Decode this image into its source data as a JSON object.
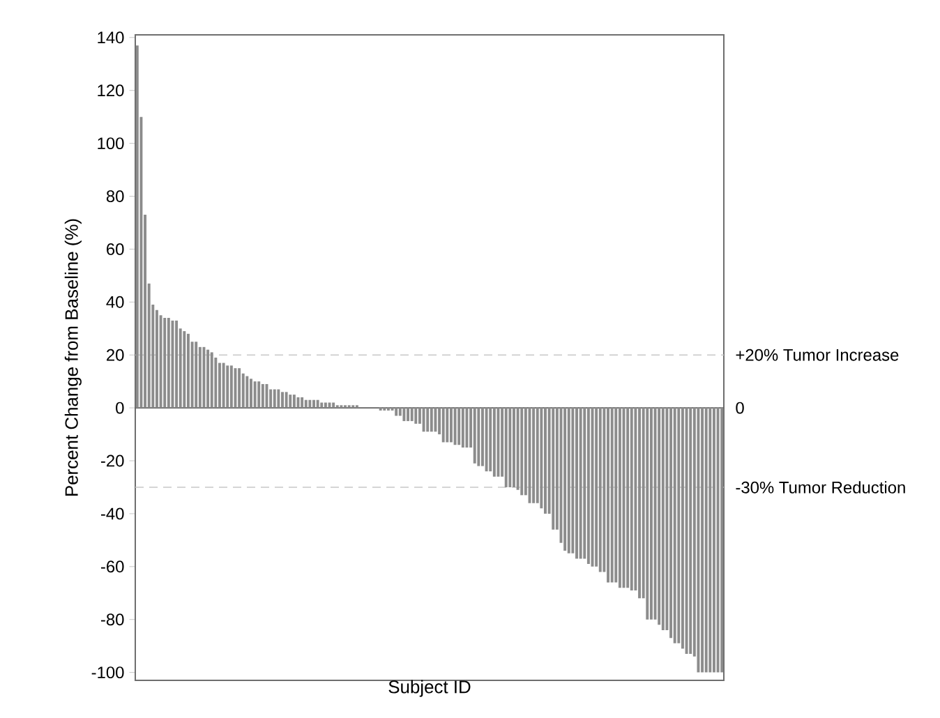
{
  "chart_data": {
    "type": "bar",
    "xlabel": "Subject ID",
    "ylabel": "Percent Change from Baseline (%)",
    "categories": [
      null,
      null,
      null,
      null,
      null,
      null,
      null,
      null,
      null,
      null,
      null,
      null,
      null,
      null,
      null,
      null,
      null,
      null,
      null,
      null,
      null,
      null,
      null,
      null,
      null,
      null,
      null,
      null,
      null,
      null,
      null,
      null,
      null,
      null,
      null,
      null,
      null,
      null,
      null,
      null,
      null,
      null,
      null,
      null,
      null,
      null,
      null,
      null,
      null,
      null,
      null,
      null,
      null,
      null,
      null,
      null,
      null,
      null,
      null,
      null,
      null,
      null,
      null,
      null,
      null,
      null,
      null,
      null,
      null,
      null,
      null,
      null,
      null,
      null,
      null,
      null,
      null,
      null,
      null,
      null,
      null,
      null,
      null,
      null,
      null,
      null,
      null,
      null,
      null,
      null,
      null,
      null,
      null,
      null,
      null,
      null,
      null,
      null,
      null,
      null,
      null,
      null,
      null,
      null,
      null,
      null,
      null,
      null,
      null,
      null,
      null,
      null,
      null,
      null,
      null,
      null,
      null,
      null,
      null,
      null,
      null,
      null,
      null,
      null,
      null,
      null,
      null,
      null,
      null,
      null,
      null,
      null,
      null,
      null,
      null,
      null,
      null,
      null,
      null,
      null,
      null,
      null,
      null,
      null,
      null,
      null,
      null,
      null,
      null,
      null
    ],
    "values": [
      137,
      110,
      73,
      47,
      39,
      37,
      35,
      34,
      34,
      33,
      33,
      30,
      29,
      28,
      25,
      25,
      23,
      23,
      22,
      21,
      19,
      17,
      17,
      16,
      16,
      15,
      15,
      13,
      12,
      11,
      10,
      10,
      9,
      9,
      7,
      7,
      7,
      6,
      6,
      5,
      5,
      4,
      4,
      3,
      3,
      3,
      3,
      2,
      2,
      2,
      2,
      1,
      1,
      1,
      1,
      1,
      1,
      0,
      0,
      0,
      0,
      0,
      -1,
      -1,
      -1,
      -1,
      -3,
      -3,
      -5,
      -5,
      -5,
      -6,
      -6,
      -9,
      -9,
      -9,
      -9,
      -10,
      -13,
      -13,
      -13,
      -14,
      -14,
      -15,
      -15,
      -15,
      -21,
      -22,
      -22,
      -24,
      -24,
      -26,
      -26,
      -26,
      -30,
      -30,
      -30,
      -31,
      -33,
      -33,
      -36,
      -36,
      -36,
      -38,
      -40,
      -40,
      -46,
      -46,
      -51,
      -54,
      -55,
      -55,
      -57,
      -57,
      -57,
      -59,
      -60,
      -60,
      -62,
      -62,
      -66,
      -66,
      -66,
      -68,
      -68,
      -68,
      -69,
      -69,
      -72,
      -72,
      -80,
      -80,
      -80,
      -82,
      -84,
      -84,
      -87,
      -89,
      -89,
      -91,
      -93,
      -93,
      -94,
      -100,
      -100,
      -100,
      -100,
      -100,
      -100,
      -100
    ],
    "color": "#8c8c8c",
    "ylim": [
      -103,
      141
    ],
    "yticks": [
      -100,
      -80,
      -60,
      -40,
      -20,
      0,
      20,
      40,
      60,
      80,
      100,
      120,
      140
    ],
    "ref_lines": [
      {
        "axis": "y",
        "value": 20,
        "label": "+20% Tumor Increase",
        "color": "#c8c8c8",
        "line_style": "dashed"
      },
      {
        "axis": "y",
        "value": 0,
        "label": "0",
        "color": "#606060",
        "line_style": "solid"
      },
      {
        "axis": "y",
        "value": -30,
        "label": "-30% Tumor Reduction",
        "color": "#c8c8c8",
        "line_style": "dashed"
      }
    ]
  }
}
